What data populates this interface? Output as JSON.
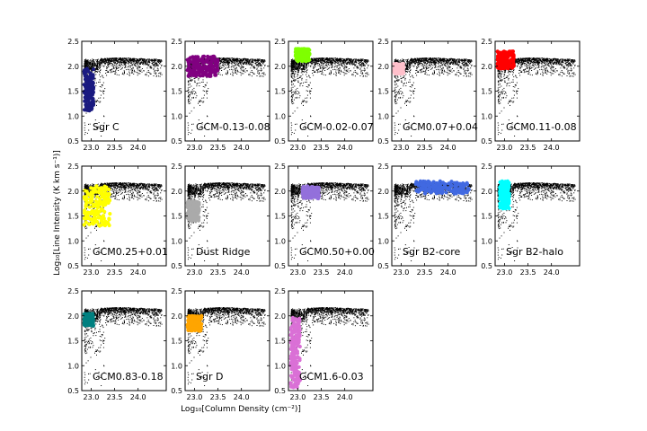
{
  "figure": {
    "ylabel": "Log₁₀[Line Intensity (K km s⁻¹)]",
    "xlabel": "Log₁₀[Column Density (cm⁻²)]"
  },
  "chart_data": {
    "type": "scatter",
    "xlim": [
      22.8,
      24.6
    ],
    "ylim": [
      0.5,
      2.5
    ],
    "xticks": [
      23.0,
      23.5,
      24.0
    ],
    "xtick_labels": [
      "23.0",
      "23.5",
      "24.0"
    ],
    "yticks": [
      0.5,
      1.0,
      1.5,
      2.0,
      2.5
    ],
    "ytick_labels": [
      "0.5",
      "1.0",
      "1.5",
      "2.0",
      "2.5"
    ],
    "grid": false,
    "background_series": {
      "color": "#000000",
      "description_x_range": [
        22.85,
        24.5
      ],
      "upper_ridge_y": [
        2.0,
        2.2
      ],
      "lower_tail_y_min": 0.6
    },
    "panels": [
      {
        "label": "Sgr C",
        "color": "#1a1a80",
        "region": {
          "x": [
            22.85,
            23.05
          ],
          "y": [
            1.1,
            1.95
          ]
        }
      },
      {
        "label": "GCM-0.13-0.08",
        "color": "#800080",
        "region": {
          "x": [
            22.85,
            23.5
          ],
          "y": [
            1.8,
            2.2
          ]
        }
      },
      {
        "label": "GCM-0.02-0.07",
        "color": "#7fff00",
        "region": {
          "x": [
            22.95,
            23.25
          ],
          "y": [
            2.1,
            2.35
          ]
        }
      },
      {
        "label": "GCM0.07+0.04",
        "color": "#ffc0cb",
        "region": {
          "x": [
            22.85,
            23.05
          ],
          "y": [
            1.85,
            2.05
          ]
        }
      },
      {
        "label": "GCM0.11-0.08",
        "color": "#ff0000",
        "region": {
          "x": [
            22.85,
            23.2
          ],
          "y": [
            1.95,
            2.3
          ]
        }
      },
      {
        "label": "GCM0.25+0.01",
        "color": "#ffff00",
        "region": {
          "x": [
            22.85,
            23.4
          ],
          "y": [
            1.3,
            2.1
          ]
        }
      },
      {
        "label": "Dust Ridge",
        "color": "#aaaaaa",
        "region": {
          "x": [
            22.85,
            23.1
          ],
          "y": [
            1.4,
            1.8
          ]
        }
      },
      {
        "label": "GCM0.50+0.00",
        "color": "#9370db",
        "region": {
          "x": [
            23.1,
            23.45
          ],
          "y": [
            1.85,
            2.1
          ]
        }
      },
      {
        "label": "Sgr B2-core",
        "color": "#4169e1",
        "region": {
          "x": [
            23.3,
            24.45
          ],
          "y": [
            1.95,
            2.2
          ]
        }
      },
      {
        "label": "Sgr B2-halo",
        "color": "#00ffff",
        "region": {
          "x": [
            22.9,
            23.1
          ],
          "y": [
            1.65,
            2.2
          ]
        }
      },
      {
        "label": "GCM0.83-0.18",
        "color": "#008080",
        "region": {
          "x": [
            22.85,
            23.05
          ],
          "y": [
            1.8,
            2.05
          ]
        }
      },
      {
        "label": "Sgr D",
        "color": "#ffa500",
        "region": {
          "x": [
            22.85,
            23.15
          ],
          "y": [
            1.7,
            2.0
          ]
        }
      },
      {
        "label": "GCM1.6-0.03",
        "color": "#da70d6",
        "region": {
          "x": [
            22.85,
            23.05
          ],
          "y": [
            0.55,
            2.0
          ]
        }
      }
    ]
  }
}
